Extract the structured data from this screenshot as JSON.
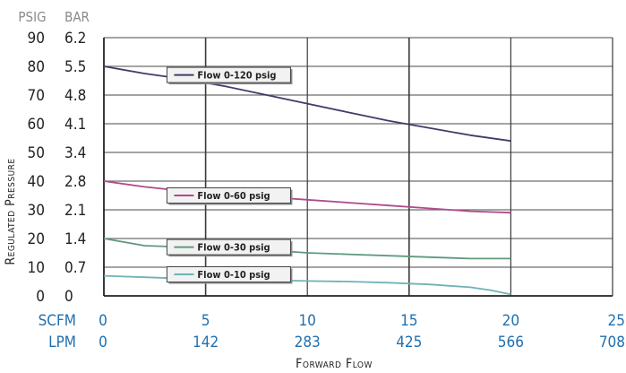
{
  "chart_data": {
    "type": "line",
    "y_headers": {
      "psig": "PSIG",
      "bar": "BAR"
    },
    "y_ticks_psig": [
      "90",
      "80",
      "70",
      "60",
      "50",
      "40",
      "30",
      "20",
      "10",
      "0"
    ],
    "y_ticks_bar": [
      "6.2",
      "5.5",
      "4.8",
      "4.1",
      "3.4",
      "2.8",
      "2.1",
      "1.4",
      "0.7",
      "0"
    ],
    "x_row_labels": {
      "scfm": "SCFM",
      "lpm": "LPM"
    },
    "x_ticks_scfm": [
      "0",
      "5",
      "10",
      "15",
      "20",
      "25"
    ],
    "x_ticks_lpm": [
      "0",
      "142",
      "283",
      "425",
      "566",
      "708"
    ],
    "xlabel": "Forward Flow",
    "ylabel": "Regulated Pressure",
    "xlim": [
      0,
      25
    ],
    "ylim": [
      0,
      90
    ],
    "grid": true,
    "series": [
      {
        "name": "Flow 0-120 psig",
        "color": "#3d3d6b",
        "x": [
          0,
          2,
          4,
          6,
          8,
          10,
          12,
          14,
          16,
          18,
          20
        ],
        "y": [
          80,
          77.5,
          75.5,
          73,
          70,
          67,
          64,
          61,
          58.5,
          56,
          54
        ]
      },
      {
        "name": "Flow 0-60 psig",
        "color": "#b04a8c",
        "x": [
          0,
          2,
          4,
          6,
          8,
          10,
          12,
          14,
          16,
          18,
          20
        ],
        "y": [
          40,
          38,
          36.5,
          35.5,
          34.5,
          33.5,
          32.5,
          31.5,
          30.5,
          29.5,
          29
        ]
      },
      {
        "name": "Flow 0-30 psig",
        "color": "#5f9a7e",
        "x": [
          0,
          2,
          4,
          6,
          8,
          10,
          12,
          14,
          16,
          18,
          20
        ],
        "y": [
          20,
          17.5,
          17,
          16.5,
          16,
          15,
          14.5,
          14,
          13.5,
          13,
          13
        ]
      },
      {
        "name": "Flow 0-10 psig",
        "color": "#6fb3b4",
        "x": [
          0,
          2,
          4,
          6,
          8,
          10,
          12,
          14,
          16,
          17,
          18,
          19,
          20
        ],
        "y": [
          7,
          6.5,
          6,
          5.8,
          5.5,
          5.2,
          5,
          4.6,
          4,
          3.5,
          3,
          2,
          0.5
        ]
      }
    ]
  }
}
